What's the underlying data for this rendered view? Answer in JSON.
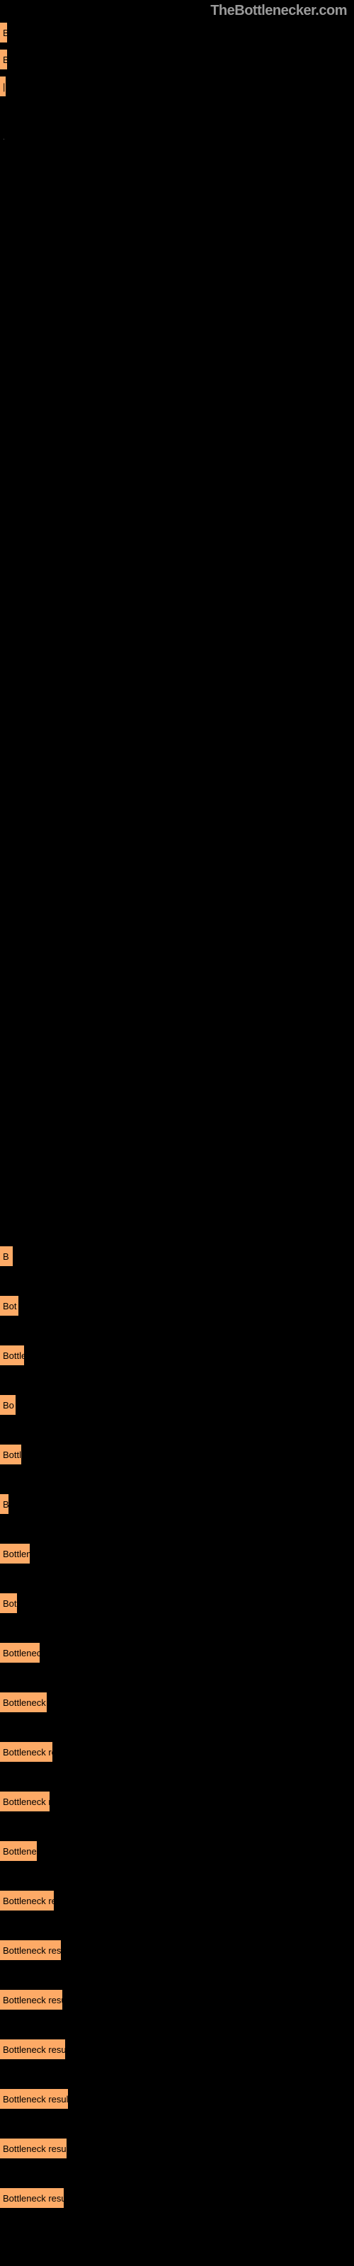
{
  "brand": "TheBottlenecker.com",
  "bar_color": "#fdaa66",
  "bar_text_color": "#000000",
  "background_color": "#000000",
  "top_bars": [
    {
      "width": 10,
      "label": "B"
    },
    {
      "width": 10,
      "label": "B"
    },
    {
      "width": 5,
      "label": "|"
    }
  ],
  "small_tick": "·",
  "chart": {
    "rows": [
      {
        "width": 18,
        "label": "B"
      },
      {
        "width": 26,
        "label": "Bot"
      },
      {
        "width": 34,
        "label": "Bottlen"
      },
      {
        "width": 22,
        "label": "Bo"
      },
      {
        "width": 30,
        "label": "Bottl"
      },
      {
        "width": 12,
        "label": "B"
      },
      {
        "width": 42,
        "label": "Bottlene"
      },
      {
        "width": 24,
        "label": "Bott"
      },
      {
        "width": 56,
        "label": "Bottleneck r"
      },
      {
        "width": 66,
        "label": "Bottleneck re"
      },
      {
        "width": 74,
        "label": "Bottleneck resu"
      },
      {
        "width": 70,
        "label": "Bottleneck res"
      },
      {
        "width": 52,
        "label": "Bottleneck"
      },
      {
        "width": 76,
        "label": "Bottleneck resu"
      },
      {
        "width": 86,
        "label": "Bottleneck result"
      },
      {
        "width": 88,
        "label": "Bottleneck result"
      },
      {
        "width": 92,
        "label": "Bottleneck result"
      },
      {
        "width": 96,
        "label": "Bottleneck result"
      },
      {
        "width": 94,
        "label": "Bottleneck result"
      },
      {
        "width": 90,
        "label": "Bottleneck resu"
      }
    ]
  }
}
